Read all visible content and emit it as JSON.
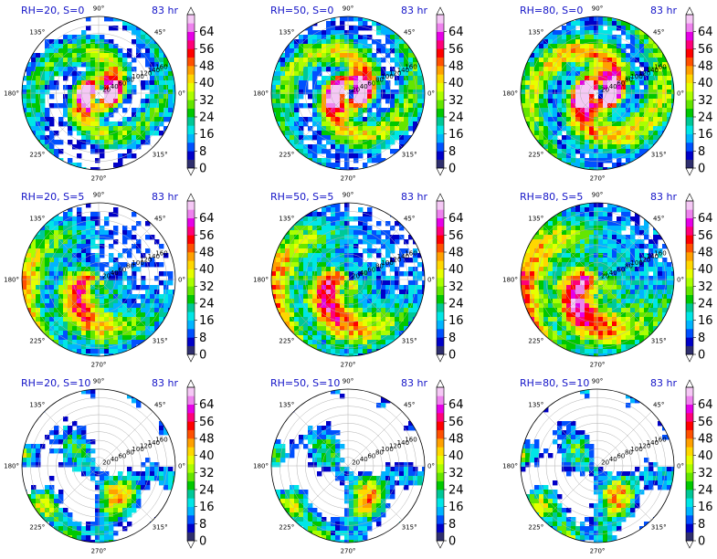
{
  "chart_data": {
    "type": "heatmap",
    "projection": "polar",
    "panels": [
      {
        "title": "RH=20, S=0",
        "time": "83 hr",
        "rh": 20,
        "shear": 0,
        "pattern": "spiral"
      },
      {
        "title": "RH=50, S=0",
        "time": "83 hr",
        "rh": 50,
        "shear": 0,
        "pattern": "spiral"
      },
      {
        "title": "RH=80, S=0",
        "time": "83 hr",
        "rh": 80,
        "shear": 0,
        "pattern": "spiral"
      },
      {
        "title": "RH=20, S=5",
        "time": "83 hr",
        "rh": 20,
        "shear": 5,
        "pattern": "asym"
      },
      {
        "title": "RH=50, S=5",
        "time": "83 hr",
        "rh": 50,
        "shear": 5,
        "pattern": "asym"
      },
      {
        "title": "RH=80, S=5",
        "time": "83 hr",
        "rh": 80,
        "shear": 5,
        "pattern": "asym"
      },
      {
        "title": "RH=20, S=10",
        "time": "83 hr",
        "rh": 20,
        "shear": 10,
        "pattern": "scatter"
      },
      {
        "title": "RH=50, S=10",
        "time": "83 hr",
        "rh": 50,
        "shear": 10,
        "pattern": "scatter"
      },
      {
        "title": "RH=80, S=10",
        "time": "83 hr",
        "rh": 80,
        "shear": 10,
        "pattern": "scatter"
      }
    ],
    "angle_ticks": [
      "0°",
      "45°",
      "90°",
      "135°",
      "180°",
      "225°",
      "270°",
      "315°"
    ],
    "radial_ticks": [
      20,
      40,
      60,
      80,
      100,
      120,
      140,
      160
    ],
    "colorbar": {
      "ticks": [
        0,
        8,
        16,
        24,
        32,
        40,
        48,
        56,
        64
      ],
      "levels": [
        0,
        4,
        8,
        12,
        16,
        20,
        24,
        28,
        32,
        36,
        40,
        44,
        48,
        52,
        56,
        60,
        64,
        68
      ],
      "colors": [
        "#2f2f6e",
        "#0000c8",
        "#0050ff",
        "#00b4ff",
        "#00e6e6",
        "#00c896",
        "#00c800",
        "#64e600",
        "#aaff00",
        "#e6ff00",
        "#ffd700",
        "#ffa000",
        "#ff5000",
        "#ff0000",
        "#ff0078",
        "#e600e6",
        "#ee82ee",
        "#f5c8f5"
      ],
      "extend": "both"
    }
  }
}
